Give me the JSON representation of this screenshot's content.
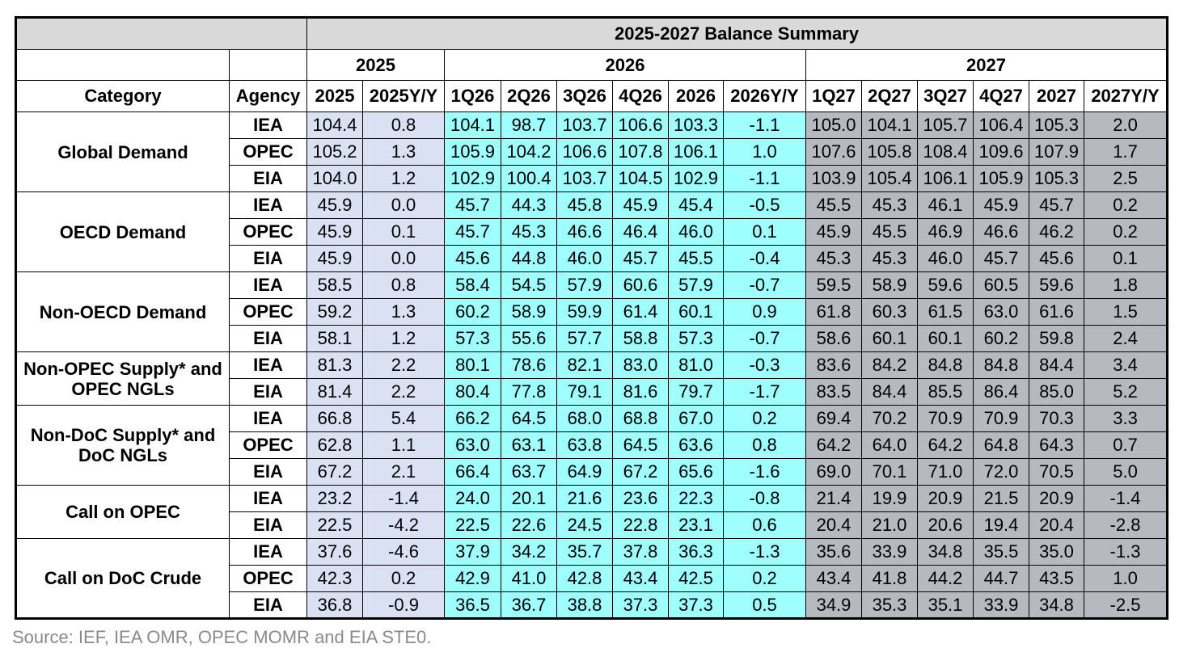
{
  "title": "2025-2027 Balance Summary",
  "header": {
    "years": [
      "2025",
      "2026",
      "2027"
    ],
    "columns": [
      "Category",
      "Agency",
      "2025",
      "2025Y/Y",
      "1Q26",
      "2Q26",
      "3Q26",
      "4Q26",
      "2026",
      "2026Y/Y",
      "1Q27",
      "2Q27",
      "3Q27",
      "4Q27",
      "2027",
      "2027Y/Y"
    ]
  },
  "groups": [
    {
      "category": "Global Demand",
      "rows": [
        {
          "agency": "IEA",
          "values": [
            "104.4",
            "0.8",
            "104.1",
            "98.7",
            "103.7",
            "106.6",
            "103.3",
            "-1.1",
            "105.0",
            "104.1",
            "105.7",
            "106.4",
            "105.3",
            "2.0"
          ]
        },
        {
          "agency": "OPEC",
          "values": [
            "105.2",
            "1.3",
            "105.9",
            "104.2",
            "106.6",
            "107.8",
            "106.1",
            "1.0",
            "107.6",
            "105.8",
            "108.4",
            "109.6",
            "107.9",
            "1.7"
          ]
        },
        {
          "agency": "EIA",
          "values": [
            "104.0",
            "1.2",
            "102.9",
            "100.4",
            "103.7",
            "104.5",
            "102.9",
            "-1.1",
            "103.9",
            "105.4",
            "106.1",
            "105.9",
            "105.3",
            "2.5"
          ]
        }
      ]
    },
    {
      "category": "OECD Demand",
      "rows": [
        {
          "agency": "IEA",
          "values": [
            "45.9",
            "0.0",
            "45.7",
            "44.3",
            "45.8",
            "45.9",
            "45.4",
            "-0.5",
            "45.5",
            "45.3",
            "46.1",
            "45.9",
            "45.7",
            "0.2"
          ]
        },
        {
          "agency": "OPEC",
          "values": [
            "45.9",
            "0.1",
            "45.7",
            "45.3",
            "46.6",
            "46.4",
            "46.0",
            "0.1",
            "45.9",
            "45.5",
            "46.9",
            "46.6",
            "46.2",
            "0.2"
          ]
        },
        {
          "agency": "EIA",
          "values": [
            "45.9",
            "0.0",
            "45.6",
            "44.8",
            "46.0",
            "45.7",
            "45.5",
            "-0.4",
            "45.3",
            "45.3",
            "46.0",
            "45.7",
            "45.6",
            "0.1"
          ]
        }
      ]
    },
    {
      "category": "Non-OECD Demand",
      "rows": [
        {
          "agency": "IEA",
          "values": [
            "58.5",
            "0.8",
            "58.4",
            "54.5",
            "57.9",
            "60.6",
            "57.9",
            "-0.7",
            "59.5",
            "58.9",
            "59.6",
            "60.5",
            "59.6",
            "1.8"
          ]
        },
        {
          "agency": "OPEC",
          "values": [
            "59.2",
            "1.3",
            "60.2",
            "58.9",
            "59.9",
            "61.4",
            "60.1",
            "0.9",
            "61.8",
            "60.3",
            "61.5",
            "63.0",
            "61.6",
            "1.5"
          ]
        },
        {
          "agency": "EIA",
          "values": [
            "58.1",
            "1.2",
            "57.3",
            "55.6",
            "57.7",
            "58.8",
            "57.3",
            "-0.7",
            "58.6",
            "60.1",
            "60.1",
            "60.2",
            "59.8",
            "2.4"
          ]
        }
      ]
    },
    {
      "category": "Non-OPEC Supply* and OPEC NGLs",
      "rows": [
        {
          "agency": "IEA",
          "values": [
            "81.3",
            "2.2",
            "80.1",
            "78.6",
            "82.1",
            "83.0",
            "81.0",
            "-0.3",
            "83.6",
            "84.2",
            "84.8",
            "84.8",
            "84.4",
            "3.4"
          ]
        },
        {
          "agency": "EIA",
          "values": [
            "81.4",
            "2.2",
            "80.4",
            "77.8",
            "79.1",
            "81.6",
            "79.7",
            "-1.7",
            "83.5",
            "84.4",
            "85.5",
            "86.4",
            "85.0",
            "5.2"
          ]
        }
      ]
    },
    {
      "category": "Non-DoC Supply* and DoC NGLs",
      "rows": [
        {
          "agency": "IEA",
          "values": [
            "66.8",
            "5.4",
            "66.2",
            "64.5",
            "68.0",
            "68.8",
            "67.0",
            "0.2",
            "69.4",
            "70.2",
            "70.9",
            "70.9",
            "70.3",
            "3.3"
          ]
        },
        {
          "agency": "OPEC",
          "values": [
            "62.8",
            "1.1",
            "63.0",
            "63.1",
            "63.8",
            "64.5",
            "63.6",
            "0.8",
            "64.2",
            "64.0",
            "64.2",
            "64.8",
            "64.3",
            "0.7"
          ]
        },
        {
          "agency": "EIA",
          "values": [
            "67.2",
            "2.1",
            "66.4",
            "63.7",
            "64.9",
            "67.2",
            "65.6",
            "-1.6",
            "69.0",
            "70.1",
            "71.0",
            "72.0",
            "70.5",
            "5.0"
          ]
        }
      ]
    },
    {
      "category": "Call on OPEC",
      "rows": [
        {
          "agency": "IEA",
          "values": [
            "23.2",
            "-1.4",
            "24.0",
            "20.1",
            "21.6",
            "23.6",
            "22.3",
            "-0.8",
            "21.4",
            "19.9",
            "20.9",
            "21.5",
            "20.9",
            "-1.4"
          ]
        },
        {
          "agency": "EIA",
          "values": [
            "22.5",
            "-4.2",
            "22.5",
            "22.6",
            "24.5",
            "22.8",
            "23.1",
            "0.6",
            "20.4",
            "21.0",
            "20.6",
            "19.4",
            "20.4",
            "-2.8"
          ]
        }
      ]
    },
    {
      "category": "Call on DoC Crude",
      "rows": [
        {
          "agency": "IEA",
          "values": [
            "37.6",
            "-4.6",
            "37.9",
            "34.2",
            "35.7",
            "37.8",
            "36.3",
            "-1.3",
            "35.6",
            "33.9",
            "34.8",
            "35.5",
            "35.0",
            "-1.3"
          ]
        },
        {
          "agency": "OPEC",
          "values": [
            "42.3",
            "0.2",
            "42.9",
            "41.0",
            "42.8",
            "43.4",
            "42.5",
            "0.2",
            "43.4",
            "41.8",
            "44.2",
            "44.7",
            "43.5",
            "1.0"
          ]
        },
        {
          "agency": "EIA",
          "values": [
            "36.8",
            "-0.9",
            "36.5",
            "36.7",
            "38.8",
            "37.3",
            "37.3",
            "0.5",
            "34.9",
            "35.3",
            "35.1",
            "33.9",
            "34.8",
            "-2.5"
          ]
        }
      ]
    }
  ],
  "source": "Source: IEF, IEA OMR, OPEC MOMR and EIA STE0."
}
